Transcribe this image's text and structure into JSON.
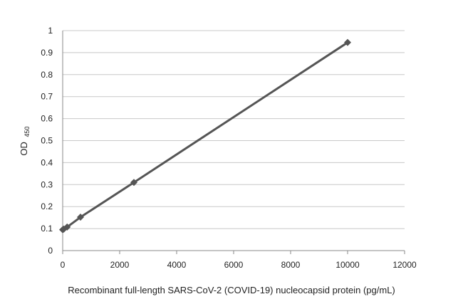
{
  "chart_data": {
    "type": "line",
    "title": "",
    "xlabel": "Recombinant full-length SARS-CoV-2 (COVID-19) nucleocapsid protein (pg/mL)",
    "ylabel": "OD",
    "ylabel_subscript": "450",
    "xlim": [
      0,
      12000
    ],
    "ylim": [
      0,
      1
    ],
    "x_ticks": [
      "0",
      "2000",
      "4000",
      "6000",
      "8000",
      "10000",
      "12000"
    ],
    "y_ticks": [
      "0",
      "0.1",
      "0.2",
      "0.3",
      "0.4",
      "0.5",
      "0.6",
      "0.7",
      "0.8",
      "0.9",
      "1"
    ],
    "grid": "horizontal",
    "legend": "none",
    "marker": "diamond",
    "series": [
      {
        "color": "#555555",
        "points": [
          {
            "x": 0,
            "y": 0.095
          },
          {
            "x": 40,
            "y": 0.098
          },
          {
            "x": 156,
            "y": 0.107
          },
          {
            "x": 625,
            "y": 0.152
          },
          {
            "x": 2500,
            "y": 0.31
          },
          {
            "x": 10000,
            "y": 0.946
          }
        ]
      }
    ]
  },
  "colors": {
    "gridline": "#c8c8c8",
    "axis": "#888888",
    "series_line": "#555555"
  }
}
